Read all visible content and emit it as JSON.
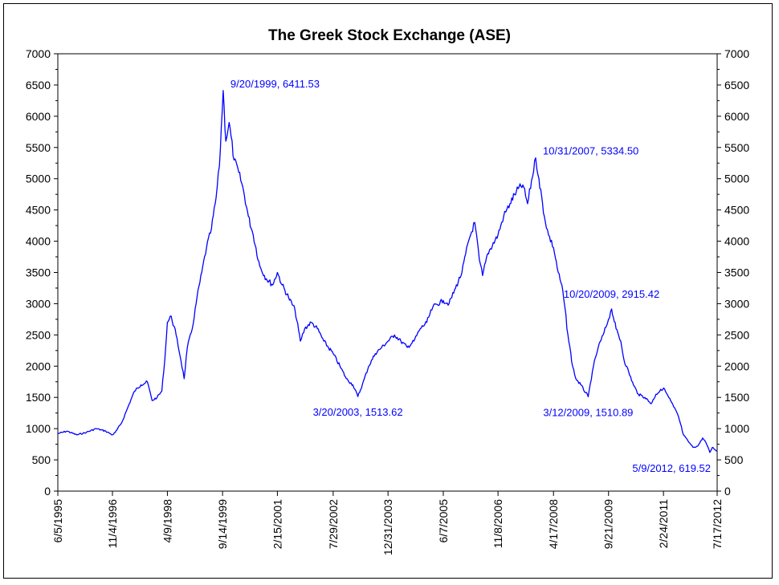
{
  "chart_data": {
    "type": "line",
    "title": "The Greek Stock Exchange (ASE)",
    "xlabel": "",
    "ylabel": "",
    "ylim": [
      0,
      7000
    ],
    "yticks": [
      0,
      500,
      1000,
      1500,
      2000,
      2500,
      3000,
      3500,
      4000,
      4500,
      5000,
      5500,
      6000,
      6500,
      7000
    ],
    "xticks": [
      "6/5/1995",
      "11/4/1996",
      "4/9/1998",
      "9/14/1999",
      "2/15/2001",
      "7/29/2002",
      "12/31/2003",
      "6/7/2005",
      "11/8/2006",
      "4/17/2008",
      "9/21/2009",
      "2/24/2011",
      "7/17/2012"
    ],
    "grid": false,
    "line_color": "#0000ff",
    "series": [
      {
        "x": [
          "6/5/1995",
          "9/1/1995",
          "12/1/1995",
          "3/1/1996",
          "6/1/1996",
          "9/1/1996",
          "11/4/1996",
          "12/1/1996",
          "2/1/1997",
          "4/1/1997",
          "6/1/1997",
          "8/1/1997",
          "10/1/1997",
          "11/15/1997",
          "1/1/1998",
          "2/15/1998",
          "3/15/1998",
          "4/9/1998",
          "5/15/1998",
          "7/1/1998",
          "8/15/1998",
          "9/15/1998",
          "10/15/1998",
          "12/1/1998",
          "1/15/1999",
          "3/1/1999",
          "4/15/1999",
          "6/1/1999",
          "7/15/1999",
          "8/15/1999",
          "9/20/1999",
          "10/15/1999",
          "11/15/1999",
          "1/1/2000",
          "2/15/2000",
          "4/1/2000",
          "5/15/2000",
          "7/1/2000",
          "9/1/2000",
          "11/1/2000",
          "1/1/2001",
          "2/15/2001",
          "4/1/2001",
          "6/1/2001",
          "8/1/2001",
          "9/21/2001",
          "11/1/2001",
          "1/1/2002",
          "3/1/2002",
          "5/1/2002",
          "7/29/2002",
          "10/1/2002",
          "12/1/2002",
          "2/1/2003",
          "3/20/2003",
          "5/1/2003",
          "7/1/2003",
          "9/1/2003",
          "11/1/2003",
          "12/31/2003",
          "3/1/2004",
          "5/1/2004",
          "7/1/2004",
          "9/1/2004",
          "11/1/2004",
          "1/1/2005",
          "3/1/2005",
          "6/7/2005",
          "8/1/2005",
          "10/1/2005",
          "12/1/2005",
          "2/1/2006",
          "4/1/2006",
          "5/15/2006",
          "6/15/2006",
          "8/1/2006",
          "11/8/2006",
          "1/1/2007",
          "3/1/2007",
          "5/1/2007",
          "7/1/2007",
          "8/15/2007",
          "10/31/2007",
          "12/1/2007",
          "1/21/2008",
          "3/1/2008",
          "4/17/2008",
          "6/1/2008",
          "7/15/2008",
          "9/1/2008",
          "10/15/2008",
          "11/15/2008",
          "1/1/2009",
          "3/12/2009",
          "5/1/2009",
          "6/15/2009",
          "8/1/2009",
          "9/21/2009",
          "10/20/2009",
          "12/1/2009",
          "1/15/2010",
          "2/15/2010",
          "4/1/2010",
          "5/15/2010",
          "7/1/2010",
          "9/1/2010",
          "11/1/2010",
          "12/15/2010",
          "2/24/2011",
          "4/15/2011",
          "6/1/2011",
          "7/15/2011",
          "9/1/2011",
          "10/15/2011",
          "12/1/2011",
          "1/15/2012",
          "3/1/2012",
          "4/1/2012",
          "5/9/2012",
          "6/1/2012",
          "7/17/2012"
        ],
        "values": [
          920,
          960,
          900,
          940,
          1000,
          960,
          900,
          940,
          1100,
          1350,
          1600,
          1700,
          1750,
          1450,
          1500,
          1600,
          2100,
          2700,
          2800,
          2500,
          2100,
          1800,
          2300,
          2600,
          3100,
          3500,
          3900,
          4200,
          4700,
          5200,
          6411.53,
          5600,
          5900,
          5300,
          5100,
          4800,
          4400,
          4100,
          3600,
          3400,
          3300,
          3500,
          3300,
          3100,
          2900,
          2400,
          2600,
          2700,
          2600,
          2400,
          2200,
          2000,
          1800,
          1700,
          1513.62,
          1700,
          2000,
          2200,
          2300,
          2400,
          2500,
          2400,
          2300,
          2400,
          2600,
          2700,
          2950,
          3050,
          3000,
          3250,
          3500,
          4000,
          4300,
          3700,
          3450,
          3800,
          4100,
          4400,
          4600,
          4800,
          4900,
          4600,
          5334.5,
          5000,
          4400,
          4100,
          3900,
          3500,
          3200,
          2500,
          2000,
          1800,
          1700,
          1510.89,
          2000,
          2300,
          2500,
          2750,
          2915.42,
          2600,
          2400,
          2100,
          1900,
          1700,
          1550,
          1500,
          1400,
          1550,
          1650,
          1500,
          1350,
          1200,
          900,
          800,
          700,
          720,
          850,
          780,
          619.52,
          700,
          640
        ]
      }
    ],
    "annotations": [
      {
        "label": "9/20/1999, 6411.53",
        "x": "9/20/1999",
        "y": 6411.53,
        "anchor": "right"
      },
      {
        "label": "10/31/2007, 5334.50",
        "x": "10/31/2007",
        "y": 5334.5,
        "anchor": "right"
      },
      {
        "label": "10/20/2009, 2915.42",
        "x": "10/20/2009",
        "y": 2915.42,
        "anchor": "above"
      },
      {
        "label": "3/20/2003, 1513.62",
        "x": "3/20/2003",
        "y": 1513.62,
        "anchor": "below"
      },
      {
        "label": "3/12/2009, 1510.89",
        "x": "3/12/2009",
        "y": 1510.89,
        "anchor": "below"
      },
      {
        "label": "5/9/2012, 619.52",
        "x": "5/9/2012",
        "y": 619.52,
        "anchor": "below"
      }
    ]
  }
}
